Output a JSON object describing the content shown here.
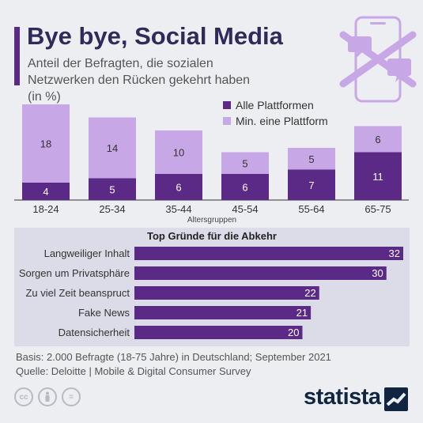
{
  "header": {
    "title": "Bye bye, Social Media",
    "subtitle": "Anteil der Befragten, die sozialen Netzwerken den Rücken gekehrt haben (in %)"
  },
  "colors": {
    "dark": "#5b2a86",
    "light": "#c7a7e6",
    "bg": "#edeef2",
    "panel": "#dcdce9"
  },
  "icons": [
    "phone-icon",
    "speech-bubble-icon",
    "cross-icon",
    "cc-icon",
    "person-icon",
    "equals-icon",
    "statista-logo-icon"
  ],
  "chart_data": [
    {
      "type": "bar",
      "stacked": true,
      "categories": [
        "18-24",
        "25-34",
        "35-44",
        "45-54",
        "55-64",
        "65-75"
      ],
      "series": [
        {
          "name": "Alle Plattformen",
          "values": [
            4,
            5,
            6,
            6,
            7,
            11
          ]
        },
        {
          "name": "Min. eine Plattform",
          "values": [
            18,
            14,
            10,
            5,
            5,
            6
          ]
        }
      ],
      "xlabel": "Altersgruppen",
      "ylabel": "",
      "legend": "top-right",
      "grid": false
    },
    {
      "type": "bar",
      "orientation": "horizontal",
      "title": "Top Gründe für die Abkehr",
      "categories": [
        "Langweiliger Inhalt",
        "Sorgen um Privatsphäre",
        "Zu viel Zeit beanspruct",
        "Fake News",
        "Datensicherheit"
      ],
      "values": [
        32,
        30,
        22,
        21,
        20
      ],
      "xlim": [
        0,
        32
      ]
    }
  ],
  "footer": {
    "basis": "Basis: 2.000 Befragte (18-75 Jahre) in Deutschland; September 2021",
    "source": "Quelle: Deloitte | Mobile & Digital Consumer Survey",
    "brand": "statista"
  }
}
